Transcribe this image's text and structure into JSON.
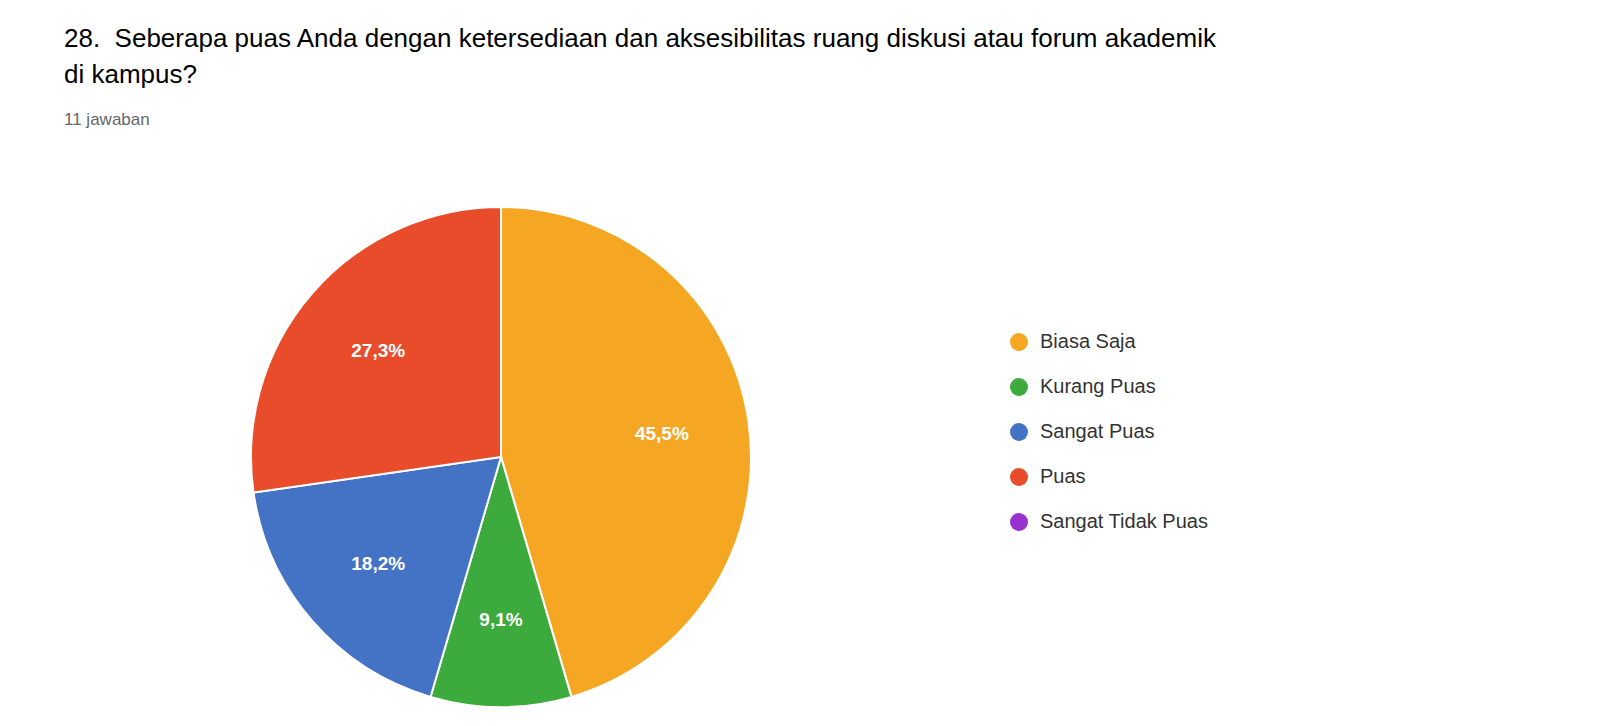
{
  "chart_data": {
    "type": "pie",
    "title": "28.  Seberapa puas Anda dengan ketersediaan dan aksesibilitas ruang diskusi atau forum akademik\ndi kampus?",
    "subtitle": "11 jawaban",
    "categories": [
      "Biasa Saja",
      "Kurang Puas",
      "Sangat Puas",
      "Puas",
      "Sangat Tidak Puas"
    ],
    "values": [
      45.5,
      9.1,
      18.2,
      27.3,
      0.0
    ],
    "value_labels": [
      "45,5%",
      "9,1%",
      "18,2%",
      "27,3%",
      null
    ],
    "colors": [
      "#f5a623",
      "#3daa3d",
      "#4472c4",
      "#e84c2b",
      "#9b30d0"
    ],
    "data_labels": true,
    "legend": "right"
  }
}
